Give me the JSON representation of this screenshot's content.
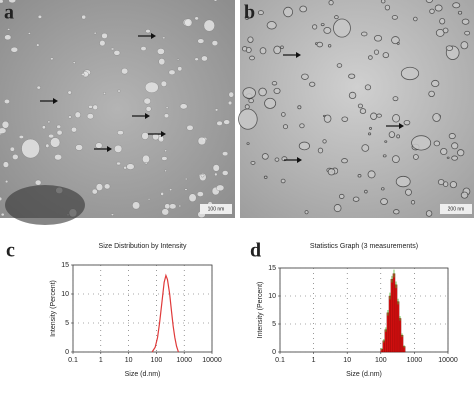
{
  "panel_labels": [
    "a",
    "b",
    "c",
    "d"
  ],
  "micrographs": [
    {
      "scale_bar": "100 nm"
    },
    {
      "scale_bar": "200 nm"
    }
  ],
  "chart_data": [
    {
      "type": "line",
      "title": "Size Distribution by Intensity",
      "x_label": "Size (d.nm)",
      "y_label": "Intensity (Percent)",
      "x": [
        70,
        90,
        110,
        130,
        160,
        190,
        220,
        250,
        300,
        350,
        400,
        460,
        530,
        620
      ],
      "values": [
        0,
        0.8,
        2.5,
        5,
        8.8,
        12,
        13.2,
        12.5,
        10,
        7,
        4.5,
        2.5,
        1,
        0
      ],
      "color": "#e03a3a",
      "xscale": "log",
      "xlim": [
        0.1,
        10000
      ],
      "xticks": [
        0.1,
        1,
        10,
        100,
        1000,
        10000
      ],
      "ylim": [
        0,
        15
      ],
      "yticks": [
        0,
        5,
        10,
        15
      ],
      "grid": true
    },
    {
      "type": "histogram",
      "title": "Statistics Graph (3 measurements)",
      "x_label": "Size (d.nm)",
      "y_label": "Intensity (Percent)",
      "bins": [
        100,
        115,
        132,
        152,
        175,
        200,
        230,
        265,
        305,
        350,
        400,
        460,
        530
      ],
      "values": [
        0.5,
        2,
        4,
        7,
        10,
        13,
        14,
        12,
        9,
        6,
        3,
        1
      ],
      "errors": [
        0.2,
        0.3,
        0.4,
        0.5,
        0.6,
        0.6,
        0.7,
        0.6,
        0.5,
        0.4,
        0.3,
        0.2
      ],
      "color": "#dd1111",
      "error_color": "#5bbf3a",
      "xscale": "log",
      "xlim": [
        0.1,
        10000
      ],
      "xticks": [
        0.1,
        1,
        10,
        100,
        1000,
        10000
      ],
      "ylim": [
        0,
        15
      ],
      "yticks": [
        0,
        5,
        10,
        15
      ],
      "grid": true
    }
  ]
}
